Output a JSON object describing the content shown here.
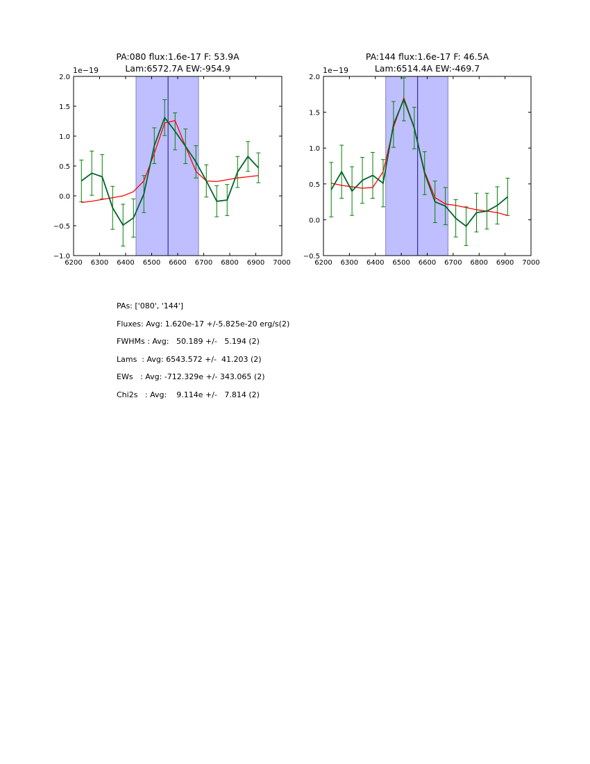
{
  "chart_data": [
    {
      "type": "line",
      "title": "PA:080 flux:1.6e-17 F: 53.9A",
      "subtitle": "Lam:6572.7A EW:-954.9",
      "offset_label": "1e−19",
      "xlim": [
        6200,
        7000
      ],
      "ylim": [
        -1.0,
        2.0
      ],
      "xticks": [
        "6200",
        "6300",
        "6400",
        "6500",
        "6600",
        "6700",
        "6800",
        "6900",
        "7000"
      ],
      "yticks": [
        "−1.0",
        "−0.5",
        "0.0",
        "0.5",
        "1.0",
        "1.5",
        "2.0"
      ],
      "ytick_values": [
        -1.0,
        -0.5,
        0,
        0.5,
        1.0,
        1.5,
        2.0
      ],
      "band": [
        6440,
        6680
      ],
      "vline": 6563,
      "x": [
        6230,
        6270,
        6310,
        6350,
        6390,
        6430,
        6470,
        6510,
        6550,
        6590,
        6630,
        6670,
        6710,
        6750,
        6790,
        6830,
        6870,
        6910
      ],
      "series": [
        {
          "name": "data",
          "color": "#006400",
          "values": [
            0.25,
            0.38,
            0.32,
            -0.2,
            -0.49,
            -0.37,
            0.03,
            0.84,
            1.31,
            1.08,
            0.83,
            0.57,
            0.25,
            -0.09,
            -0.07,
            0.4,
            0.66,
            0.47
          ],
          "errors": [
            0.35,
            0.37,
            0.37,
            0.36,
            0.35,
            0.32,
            0.31,
            0.3,
            0.3,
            0.31,
            0.29,
            0.27,
            0.27,
            0.26,
            0.26,
            0.26,
            0.25,
            0.25
          ]
        },
        {
          "name": "model",
          "color": "#ff0000",
          "values": [
            -0.11,
            -0.09,
            -0.06,
            -0.03,
            0.0,
            0.07,
            0.25,
            0.71,
            1.22,
            1.26,
            0.83,
            0.41,
            0.25,
            0.24,
            0.27,
            0.3,
            0.32,
            0.34
          ]
        }
      ]
    },
    {
      "type": "line",
      "title": "PA:144 flux:1.6e-17 F: 46.5A",
      "subtitle": "Lam:6514.4A EW:-469.7",
      "offset_label": "1e−19",
      "xlim": [
        6200,
        7000
      ],
      "ylim": [
        -0.5,
        2.0
      ],
      "xticks": [
        "6200",
        "6300",
        "6400",
        "6500",
        "6600",
        "6700",
        "6800",
        "6900",
        "7000"
      ],
      "yticks": [
        "−0.5",
        "0.0",
        "0.5",
        "1.0",
        "1.5",
        "2.0"
      ],
      "ytick_values": [
        -0.5,
        0,
        0.5,
        1.0,
        1.5,
        2.0
      ],
      "band": [
        6440,
        6680
      ],
      "vline": 6563,
      "x": [
        6230,
        6270,
        6310,
        6350,
        6390,
        6430,
        6470,
        6510,
        6550,
        6590,
        6630,
        6670,
        6710,
        6750,
        6790,
        6830,
        6870,
        6910
      ],
      "series": [
        {
          "name": "data",
          "color": "#006400",
          "values": [
            0.42,
            0.67,
            0.4,
            0.55,
            0.62,
            0.51,
            1.33,
            1.68,
            1.28,
            0.65,
            0.25,
            0.19,
            0.02,
            -0.09,
            0.1,
            0.12,
            0.2,
            0.32
          ],
          "errors": [
            0.38,
            0.37,
            0.34,
            0.32,
            0.32,
            0.33,
            0.32,
            0.3,
            0.29,
            0.3,
            0.29,
            0.26,
            0.26,
            0.27,
            0.27,
            0.25,
            0.26,
            0.26
          ]
        },
        {
          "name": "model",
          "color": "#ff0000",
          "values": [
            0.51,
            0.48,
            0.46,
            0.44,
            0.45,
            0.67,
            1.29,
            1.7,
            1.29,
            0.67,
            0.31,
            0.22,
            0.2,
            0.17,
            0.14,
            0.12,
            0.1,
            0.06
          ]
        }
      ]
    }
  ],
  "stats": [
    "PAs: ['080', '144']",
    "Fluxes: Avg: 1.620e-17 +/-5.825e-20 erg/s(2)",
    "FWHMs : Avg:   50.189 +/-   5.194 (2)",
    "Lams  : Avg: 6543.572 +/-  41.203 (2)",
    "EWs   : Avg: -712.329e +/- 343.065 (2)",
    "Chi2s   : Avg:    9.114e +/-   7.814 (2)"
  ]
}
